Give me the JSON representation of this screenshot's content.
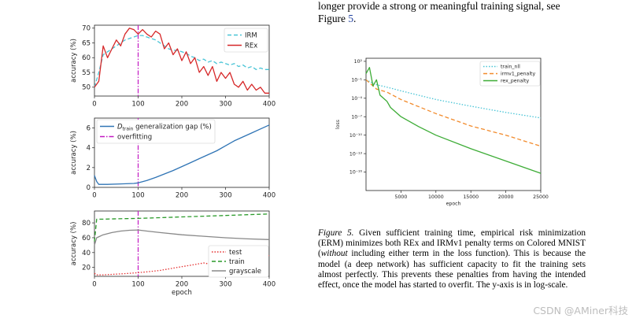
{
  "text": {
    "top_line_1": "longer provide a strong or meaningful training signal, see",
    "top_line_2_word": "Figure",
    "top_line_2_ref": "5",
    "top_line_2_end": "."
  },
  "caption": {
    "label": "Figure 5.",
    "part1": "Given sufficient training time, empirical risk minimization (ERM) minimizes both REx and IRMv1 penalty terms on Colored MNIST (",
    "italic": "without",
    "part2": " including either term in the loss function). This is because the model (a deep network) has sufficient capacity to fit the training sets almost perfectly. This prevents these penalties from having the intended effect, once the model has started to overfit. The y-axis is in log-scale."
  },
  "watermark": "CSDN @AMiner科技",
  "colors": {
    "irm": "#48c4d6",
    "rex": "#d62728",
    "gap": "#2f74b5",
    "overfit": "#c219c2",
    "test": "#e53030",
    "train": "#2a9a2a",
    "gray": "#888888",
    "ref": "#1f3f9f",
    "orange": "#f28b2c",
    "green": "#3dac36"
  },
  "chart_data": [
    {
      "type": "line",
      "title": "",
      "xlabel": "",
      "ylabel": "accuracy (%)",
      "xlim": [
        0,
        400
      ],
      "ylim": [
        47,
        71
      ],
      "xticks": [
        0,
        100,
        200,
        300,
        400
      ],
      "yticks": [
        50,
        55,
        60,
        65,
        70
      ],
      "xtick_labels": [
        "0",
        "100",
        "200",
        "300",
        "400"
      ],
      "ytick_labels": [
        "50",
        "55",
        "60",
        "65",
        "70"
      ],
      "legend": "top-right",
      "vline": 100,
      "series": [
        {
          "name": "IRM",
          "style": "dashed",
          "color": "#48c4d6",
          "x": [
            0,
            10,
            20,
            30,
            40,
            50,
            60,
            70,
            80,
            90,
            100,
            110,
            120,
            130,
            140,
            150,
            160,
            170,
            180,
            190,
            200,
            210,
            220,
            230,
            240,
            250,
            260,
            270,
            280,
            290,
            300,
            310,
            320,
            330,
            340,
            350,
            360,
            370,
            380,
            390,
            400
          ],
          "y": [
            50,
            55,
            61,
            62,
            63,
            64,
            65,
            66,
            66.5,
            67,
            67.5,
            67.5,
            67,
            66.5,
            66,
            65,
            64,
            63,
            62.5,
            62.5,
            62,
            61.5,
            60.5,
            60,
            59,
            59.5,
            58.5,
            59,
            58,
            58.5,
            58,
            57.5,
            58,
            57,
            57.5,
            56.5,
            57,
            56,
            56.5,
            56,
            56
          ]
        },
        {
          "name": "REx",
          "style": "solid",
          "color": "#d62728",
          "x": [
            0,
            10,
            20,
            30,
            40,
            50,
            60,
            70,
            80,
            90,
            100,
            110,
            120,
            130,
            140,
            150,
            160,
            170,
            180,
            190,
            200,
            210,
            220,
            230,
            240,
            250,
            260,
            270,
            280,
            290,
            300,
            310,
            320,
            330,
            340,
            350,
            360,
            370,
            380,
            390,
            400
          ],
          "y": [
            50,
            52,
            64,
            60,
            63,
            66,
            64,
            68,
            70,
            69.5,
            68,
            69.5,
            68,
            67,
            69,
            68,
            63,
            65,
            61,
            63,
            59,
            62,
            58,
            60,
            55,
            57,
            54,
            57,
            52,
            55,
            53,
            55,
            51,
            50,
            52,
            49,
            51,
            49,
            50,
            48,
            48
          ]
        }
      ]
    },
    {
      "type": "line",
      "title": "",
      "xlabel": "",
      "ylabel": "accuracy (%)",
      "xlim": [
        0,
        400
      ],
      "ylim": [
        0,
        7
      ],
      "xticks": [
        0,
        100,
        200,
        300,
        400
      ],
      "yticks": [
        0,
        2,
        4,
        6
      ],
      "xtick_labels": [
        "0",
        "100",
        "200",
        "300",
        "400"
      ],
      "ytick_labels": [
        "0",
        "2",
        "4",
        "6"
      ],
      "legend": "top-left",
      "vline": 100,
      "series": [
        {
          "name": "generalization gap (%)",
          "legend_prefix": "D",
          "legend_sub": "train",
          "style": "solid",
          "color": "#2f74b5",
          "x": [
            0,
            5,
            10,
            30,
            60,
            90,
            100,
            120,
            140,
            160,
            180,
            200,
            220,
            240,
            260,
            280,
            300,
            320,
            340,
            360,
            380,
            400
          ],
          "y": [
            1.2,
            0.6,
            0.3,
            0.3,
            0.35,
            0.4,
            0.45,
            0.7,
            1.0,
            1.35,
            1.7,
            2.1,
            2.5,
            2.9,
            3.3,
            3.7,
            4.2,
            4.7,
            5.1,
            5.5,
            5.9,
            6.3
          ]
        },
        {
          "name": "overfitting",
          "style": "dashdot",
          "color": "#c219c2"
        }
      ]
    },
    {
      "type": "line",
      "title": "",
      "xlabel": "epoch",
      "ylabel": "accuracy (%)",
      "xlim": [
        0,
        400
      ],
      "ylim": [
        8,
        96
      ],
      "xticks": [
        0,
        100,
        200,
        300,
        400
      ],
      "yticks": [
        20,
        40,
        60,
        80
      ],
      "xtick_labels": [
        "0",
        "100",
        "200",
        "300",
        "400"
      ],
      "ytick_labels": [
        "20",
        "40",
        "60",
        "80"
      ],
      "legend": "bottom-right",
      "vline": 100,
      "series": [
        {
          "name": "test",
          "style": "dotted",
          "color": "#e53030",
          "x": [
            0,
            5,
            20,
            50,
            80,
            100,
            120,
            150,
            180,
            200,
            220,
            240,
            250,
            260,
            270,
            280,
            300,
            320,
            340,
            360,
            380,
            400
          ],
          "y": [
            12,
            10,
            10,
            11,
            12,
            13,
            14,
            16,
            19,
            21,
            23,
            25,
            26,
            25,
            27,
            28,
            30,
            31,
            32,
            34,
            35,
            36
          ]
        },
        {
          "name": "train",
          "style": "dashed",
          "color": "#2a9a2a",
          "x": [
            0,
            5,
            20,
            50,
            100,
            150,
            200,
            250,
            300,
            350,
            400
          ],
          "y": [
            55,
            85,
            85,
            85.5,
            86,
            87,
            88,
            89,
            90,
            91,
            92
          ]
        },
        {
          "name": "grayscale",
          "style": "solid",
          "color": "#888888",
          "x": [
            0,
            5,
            20,
            40,
            60,
            80,
            100,
            120,
            150,
            200,
            250,
            300,
            350,
            400
          ],
          "y": [
            50,
            60,
            64,
            67,
            69,
            70,
            70.5,
            69,
            67,
            64,
            62,
            60,
            58.5,
            57.5
          ]
        }
      ]
    },
    {
      "type": "line",
      "title": "",
      "xlabel": "epoch",
      "ylabel": "loss",
      "yscale": "log",
      "xlim": [
        0,
        25000
      ],
      "ylim_log10": [
        -19,
        2.5
      ],
      "xticks": [
        5000,
        10000,
        15000,
        20000,
        25000
      ],
      "xtick_labels": [
        "5000",
        "10000",
        "15000",
        "20000",
        "25000"
      ],
      "yticks_log10": [
        2,
        -1,
        -4,
        -7,
        -10,
        -13,
        -16
      ],
      "ytick_labels": [
        "10²",
        "10⁻¹",
        "10⁻⁴",
        "10⁻⁷",
        "10⁻¹⁰",
        "10⁻¹³",
        "10⁻¹⁶"
      ],
      "legend": "top-right",
      "series": [
        {
          "name": "train_nll",
          "style": "dotted",
          "color": "#48c4d6",
          "x": [
            0,
            1500,
            3000,
            5000,
            10000,
            15000,
            20000,
            25000
          ],
          "y_log10": [
            -1,
            -1.8,
            -2.2,
            -2.8,
            -4.2,
            -5.3,
            -6.3,
            -7.2
          ]
        },
        {
          "name": "irmv1_penalty",
          "style": "dashed",
          "color": "#f28b2c",
          "x": [
            0,
            1500,
            3000,
            5000,
            10000,
            15000,
            20000,
            25000
          ],
          "y_log10": [
            -1,
            -2.5,
            -3.0,
            -4.2,
            -6.5,
            -8.5,
            -10.0,
            -11.8
          ]
        },
        {
          "name": "rex_penalty",
          "style": "solid",
          "color": "#3dac36",
          "x": [
            0,
            500,
            1000,
            1500,
            2000,
            3000,
            3500,
            5000,
            7500,
            10000,
            15000,
            20000,
            25000
          ],
          "y_log10": [
            0,
            1,
            -2,
            -1,
            -3.5,
            -4.5,
            -5.5,
            -7.0,
            -8.6,
            -10.0,
            -12.2,
            -14.2,
            -16.2
          ]
        }
      ]
    }
  ]
}
